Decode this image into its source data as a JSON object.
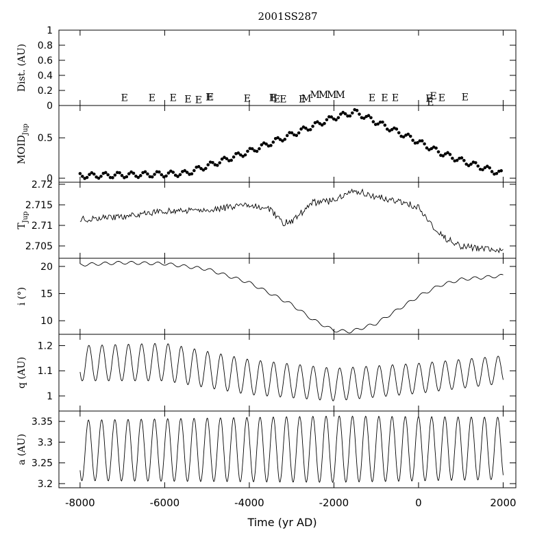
{
  "chart_data": {
    "type": "line",
    "title": "2001SS287",
    "xlabel": "Time (yr AD)",
    "xlim": [
      -8500,
      2300
    ],
    "x_ticks": [
      -8000,
      -6000,
      -4000,
      -2000,
      0,
      2000
    ],
    "x_tick_labels": [
      "-8000",
      "-6000",
      "-4000",
      "-2000",
      "0",
      "2000"
    ],
    "panels": [
      {
        "name": "dist",
        "ylabel": "Dist. (AU)",
        "ylim": [
          0,
          1
        ],
        "y_ticks": [
          0,
          0.2,
          0.4,
          0.6,
          0.8,
          1
        ],
        "y_tick_labels": [
          "0",
          "0.2",
          "0.4",
          "0.6",
          "0.8",
          "1"
        ],
        "encounters": [
          {
            "x": -6950,
            "y": 0.06,
            "label": "E"
          },
          {
            "x": -6300,
            "y": 0.06,
            "label": "E"
          },
          {
            "x": -5800,
            "y": 0.06,
            "label": "E"
          },
          {
            "x": -5450,
            "y": 0.04,
            "label": "E"
          },
          {
            "x": -5200,
            "y": 0.03,
            "label": "E"
          },
          {
            "x": -4950,
            "y": 0.07,
            "label": "E"
          },
          {
            "x": -4920,
            "y": 0.07,
            "label": "E"
          },
          {
            "x": -4050,
            "y": 0.05,
            "label": "E"
          },
          {
            "x": -3450,
            "y": 0.06,
            "label": "E"
          },
          {
            "x": -3420,
            "y": 0.06,
            "label": "E"
          },
          {
            "x": -3350,
            "y": 0.04,
            "label": "E"
          },
          {
            "x": -3200,
            "y": 0.04,
            "label": "E"
          },
          {
            "x": -2750,
            "y": 0.04,
            "label": "E"
          },
          {
            "x": -2650,
            "y": 0.05,
            "label": "M"
          },
          {
            "x": -2450,
            "y": 0.1,
            "label": "M"
          },
          {
            "x": -2250,
            "y": 0.1,
            "label": "M"
          },
          {
            "x": -2050,
            "y": 0.1,
            "label": "M"
          },
          {
            "x": -1850,
            "y": 0.1,
            "label": "M"
          },
          {
            "x": -1100,
            "y": 0.06,
            "label": "E"
          },
          {
            "x": -800,
            "y": 0.06,
            "label": "E"
          },
          {
            "x": -550,
            "y": 0.06,
            "label": "E"
          },
          {
            "x": 250,
            "y": 0.05,
            "label": "E"
          },
          {
            "x": 280,
            "y": 0.0,
            "label": "E"
          },
          {
            "x": 350,
            "y": 0.08,
            "label": "E"
          },
          {
            "x": 550,
            "y": 0.06,
            "label": "E"
          },
          {
            "x": 1100,
            "y": 0.07,
            "label": "E"
          }
        ]
      },
      {
        "name": "moid",
        "ylabel": "MOID",
        "ylabel_sub": "Jup",
        "ylim": [
          -0.05,
          0.9
        ],
        "y_ticks": [
          0,
          0.5
        ],
        "y_tick_labels": [
          "0",
          "0.5"
        ],
        "style": "points",
        "trend": [
          [
            -8000,
            0.03
          ],
          [
            -6000,
            0.05
          ],
          [
            -5500,
            0.06
          ],
          [
            -4000,
            0.33
          ],
          [
            -2000,
            0.75
          ],
          [
            -1500,
            0.82
          ],
          [
            0,
            0.45
          ],
          [
            500,
            0.32
          ],
          [
            1000,
            0.22
          ],
          [
            2000,
            0.05
          ]
        ],
        "amplitude": 0.035,
        "period": 312,
        "step": 55
      },
      {
        "name": "tjup",
        "ylabel": "T",
        "ylabel_sub": "Jup",
        "ylim": [
          2.702,
          2.7205
        ],
        "y_ticks": [
          2.705,
          2.71,
          2.715,
          2.72
        ],
        "y_tick_labels": [
          "2.705",
          "2.71",
          "2.715",
          "2.72"
        ],
        "style": "noisy-line",
        "trend": [
          [
            -8000,
            2.7115
          ],
          [
            -7000,
            2.712
          ],
          [
            -6000,
            2.7135
          ],
          [
            -5000,
            2.7138
          ],
          [
            -4000,
            2.715
          ],
          [
            -3500,
            2.714
          ],
          [
            -3200,
            2.7105
          ],
          [
            -3000,
            2.711
          ],
          [
            -2500,
            2.7155
          ],
          [
            -2000,
            2.716
          ],
          [
            -1500,
            2.7185
          ],
          [
            -1000,
            2.717
          ],
          [
            -500,
            2.7158
          ],
          [
            0,
            2.7145
          ],
          [
            300,
            2.71
          ],
          [
            600,
            2.707
          ],
          [
            1000,
            2.705
          ],
          [
            1500,
            2.7042
          ],
          [
            2000,
            2.7038
          ]
        ],
        "noise": 0.0008,
        "step": 25
      },
      {
        "name": "inc",
        "ylabel": "i (°)",
        "ylim": [
          7.5,
          21.5
        ],
        "y_ticks": [
          10,
          15,
          20
        ],
        "y_tick_labels": [
          "10",
          "15",
          "20"
        ],
        "style": "wavy-line",
        "trend": [
          [
            -8000,
            20.3
          ],
          [
            -7000,
            20.7
          ],
          [
            -6000,
            20.5
          ],
          [
            -5000,
            19.5
          ],
          [
            -4000,
            17
          ],
          [
            -3000,
            13
          ],
          [
            -2500,
            10.2
          ],
          [
            -2000,
            8.2
          ],
          [
            -1600,
            8
          ],
          [
            -1000,
            9.5
          ],
          [
            -500,
            12
          ],
          [
            0,
            14.5
          ],
          [
            500,
            16.5
          ],
          [
            1000,
            17.6
          ],
          [
            2000,
            18.3
          ]
        ],
        "amplitude": 0.28,
        "period": 312,
        "step": 20
      },
      {
        "name": "q",
        "ylabel": "q (AU)",
        "ylim": [
          0.94,
          1.245
        ],
        "y_ticks": [
          1,
          1.1,
          1.2
        ],
        "y_tick_labels": [
          "1",
          "1.1",
          "1.2"
        ],
        "style": "oscillation",
        "mid": [
          [
            -8000,
            1.13
          ],
          [
            -6000,
            1.135
          ],
          [
            -4000,
            1.075
          ],
          [
            -2000,
            1.045
          ],
          [
            0,
            1.07
          ],
          [
            2000,
            1.105
          ]
        ],
        "amplitude": [
          [
            -8000,
            0.07
          ],
          [
            -6000,
            0.075
          ],
          [
            -4000,
            0.07
          ],
          [
            -2000,
            0.065
          ],
          [
            0,
            0.06
          ],
          [
            2000,
            0.055
          ]
        ],
        "period": 312,
        "phase": 1.4,
        "step": 10
      },
      {
        "name": "a",
        "ylabel": "a (AU)",
        "ylim": [
          3.19,
          3.375
        ],
        "y_ticks": [
          3.2,
          3.25,
          3.3,
          3.35
        ],
        "y_tick_labels": [
          "3.2",
          "3.25",
          "3.3",
          "3.35"
        ],
        "style": "oscillation",
        "mid": [
          [
            -8000,
            3.28
          ],
          [
            2000,
            3.285
          ]
        ],
        "amplitude": [
          [
            -8000,
            0.073
          ],
          [
            -2000,
            0.08
          ],
          [
            2000,
            0.075
          ]
        ],
        "period": 312,
        "phase": 1.6,
        "step": 10
      }
    ]
  }
}
